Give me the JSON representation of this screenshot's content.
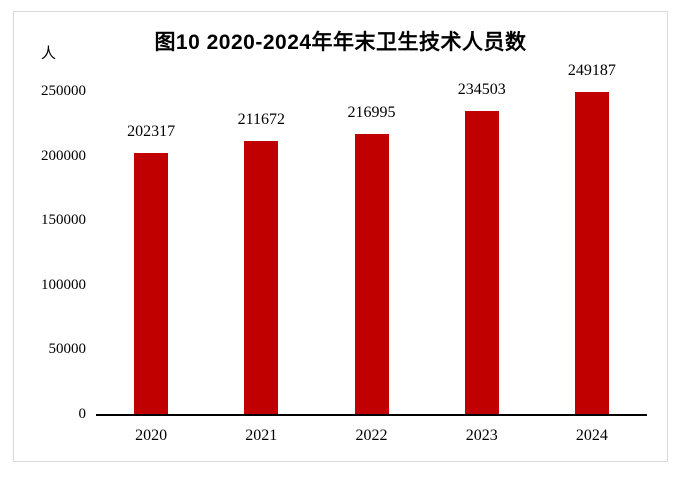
{
  "chart_data": {
    "type": "bar",
    "title": "图10 2020-2024年年末卫生技术人员数",
    "unit": "人",
    "categories": [
      "2020",
      "2021",
      "2022",
      "2023",
      "2024"
    ],
    "values": [
      202317,
      211672,
      216995,
      234503,
      249187
    ],
    "data_labels": [
      "202317",
      "211672",
      "216995",
      "234503",
      "249187"
    ],
    "ytick_labels": [
      "0",
      "50000",
      "100000",
      "150000",
      "200000",
      "250000"
    ],
    "yticks": [
      0,
      50000,
      100000,
      150000,
      200000,
      250000
    ],
    "ylim": [
      0,
      250000
    ],
    "xlabel": "",
    "ylabel": "人",
    "grid": false,
    "legend": "none",
    "colors": {
      "bar": "#c00000",
      "axis": "#000000",
      "frame_border": "#d9d9d9",
      "text": "#000000",
      "background": "#ffffff"
    }
  }
}
